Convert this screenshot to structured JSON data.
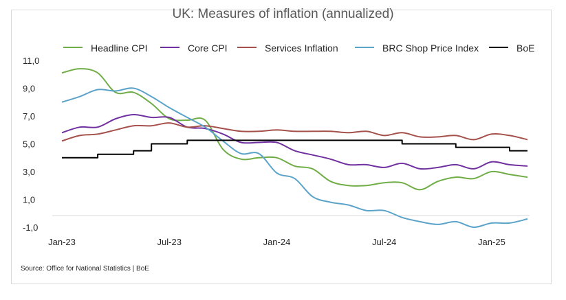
{
  "chart_data": {
    "type": "line",
    "title": "UK: Measures of inflation (annualized)",
    "source": "Source: Office for National Statistics | BoE",
    "x_labels": [
      "Jan-23",
      "Jul-23",
      "Jan-24",
      "Jul-24",
      "Jan-25"
    ],
    "y_tick_labels": [
      "11,0",
      "9,0",
      "7,0",
      "5,0",
      "3,0",
      "1,0",
      "-1,0"
    ],
    "ylim": [
      -1.0,
      11.0
    ],
    "xlim": [
      0,
      27
    ],
    "grid": false,
    "legend_position": "top",
    "series": [
      {
        "name": "Headline CPI",
        "color": "#70ad47",
        "values": [
          [
            0,
            10.1
          ],
          [
            1,
            10.4
          ],
          [
            2,
            10.1
          ],
          [
            3,
            8.7
          ],
          [
            4,
            8.7
          ],
          [
            5,
            7.9
          ],
          [
            6,
            6.8
          ],
          [
            7,
            6.7
          ],
          [
            8,
            6.7
          ],
          [
            9,
            4.6
          ],
          [
            10,
            3.9
          ],
          [
            11,
            4.0
          ],
          [
            12,
            4.0
          ],
          [
            13,
            3.4
          ],
          [
            14,
            3.2
          ],
          [
            15,
            2.3
          ],
          [
            16,
            2.0
          ],
          [
            17,
            2.0
          ],
          [
            18,
            2.2
          ],
          [
            19,
            2.2
          ],
          [
            20,
            1.7
          ],
          [
            21,
            2.3
          ],
          [
            22,
            2.6
          ],
          [
            23,
            2.5
          ],
          [
            24,
            3.0
          ],
          [
            25,
            2.8
          ],
          [
            26,
            2.6
          ]
        ]
      },
      {
        "name": "Core CPI",
        "color": "#7030a0",
        "values": [
          [
            0,
            5.8
          ],
          [
            1,
            6.2
          ],
          [
            2,
            6.2
          ],
          [
            3,
            6.8
          ],
          [
            4,
            7.1
          ],
          [
            5,
            6.9
          ],
          [
            6,
            6.9
          ],
          [
            7,
            6.2
          ],
          [
            8,
            6.1
          ],
          [
            9,
            5.7
          ],
          [
            10,
            5.1
          ],
          [
            11,
            5.1
          ],
          [
            12,
            5.1
          ],
          [
            13,
            4.5
          ],
          [
            14,
            4.2
          ],
          [
            15,
            3.9
          ],
          [
            16,
            3.5
          ],
          [
            17,
            3.5
          ],
          [
            18,
            3.3
          ],
          [
            19,
            3.6
          ],
          [
            20,
            3.2
          ],
          [
            21,
            3.3
          ],
          [
            22,
            3.5
          ],
          [
            23,
            3.2
          ],
          [
            24,
            3.7
          ],
          [
            25,
            3.5
          ],
          [
            26,
            3.4
          ]
        ]
      },
      {
        "name": "Services Inflation",
        "color": "#a5514b",
        "values": [
          [
            0,
            5.2
          ],
          [
            1,
            5.6
          ],
          [
            2,
            5.7
          ],
          [
            3,
            6.0
          ],
          [
            4,
            6.3
          ],
          [
            5,
            6.3
          ],
          [
            6,
            6.5
          ],
          [
            7,
            6.2
          ],
          [
            8,
            6.3
          ],
          [
            9,
            6.1
          ],
          [
            10,
            5.9
          ],
          [
            11,
            5.9
          ],
          [
            12,
            6.0
          ],
          [
            13,
            5.9
          ],
          [
            14,
            5.9
          ],
          [
            15,
            5.9
          ],
          [
            16,
            5.8
          ],
          [
            17,
            5.9
          ],
          [
            18,
            5.6
          ],
          [
            19,
            5.8
          ],
          [
            20,
            5.5
          ],
          [
            21,
            5.5
          ],
          [
            22,
            5.6
          ],
          [
            23,
            5.3
          ],
          [
            24,
            5.7
          ],
          [
            25,
            5.6
          ],
          [
            26,
            5.3
          ]
        ]
      },
      {
        "name": "BRC Shop Price Index",
        "color": "#5ba3c9",
        "values": [
          [
            0,
            8.0
          ],
          [
            1,
            8.4
          ],
          [
            2,
            8.9
          ],
          [
            3,
            8.8
          ],
          [
            4,
            9.0
          ],
          [
            5,
            8.4
          ],
          [
            6,
            7.6
          ],
          [
            7,
            6.9
          ],
          [
            8,
            6.2
          ],
          [
            9,
            5.2
          ],
          [
            10,
            4.3
          ],
          [
            11,
            4.3
          ],
          [
            12,
            2.9
          ],
          [
            13,
            2.5
          ],
          [
            14,
            1.2
          ],
          [
            15,
            0.8
          ],
          [
            16,
            0.6
          ],
          [
            17,
            0.2
          ],
          [
            18,
            0.2
          ],
          [
            19,
            -0.3
          ],
          [
            20,
            -0.6
          ],
          [
            21,
            -0.8
          ],
          [
            22,
            -0.6
          ],
          [
            23,
            -1.0
          ],
          [
            24,
            -0.7
          ],
          [
            25,
            -0.7
          ],
          [
            26,
            -0.4
          ]
        ]
      },
      {
        "name": "BoE",
        "color": "#000000",
        "step": true,
        "values": [
          [
            0,
            4.0
          ],
          [
            1,
            4.0
          ],
          [
            2,
            4.25
          ],
          [
            3,
            4.25
          ],
          [
            4,
            4.5
          ],
          [
            5,
            5.0
          ],
          [
            6,
            5.0
          ],
          [
            7,
            5.25
          ],
          [
            8,
            5.25
          ],
          [
            9,
            5.25
          ],
          [
            10,
            5.25
          ],
          [
            11,
            5.25
          ],
          [
            12,
            5.25
          ],
          [
            13,
            5.25
          ],
          [
            14,
            5.25
          ],
          [
            15,
            5.25
          ],
          [
            16,
            5.25
          ],
          [
            17,
            5.25
          ],
          [
            18,
            5.25
          ],
          [
            19,
            5.0
          ],
          [
            20,
            5.0
          ],
          [
            21,
            5.0
          ],
          [
            22,
            4.75
          ],
          [
            23,
            4.75
          ],
          [
            24,
            4.75
          ],
          [
            25,
            4.5
          ],
          [
            26,
            4.5
          ]
        ]
      }
    ]
  }
}
